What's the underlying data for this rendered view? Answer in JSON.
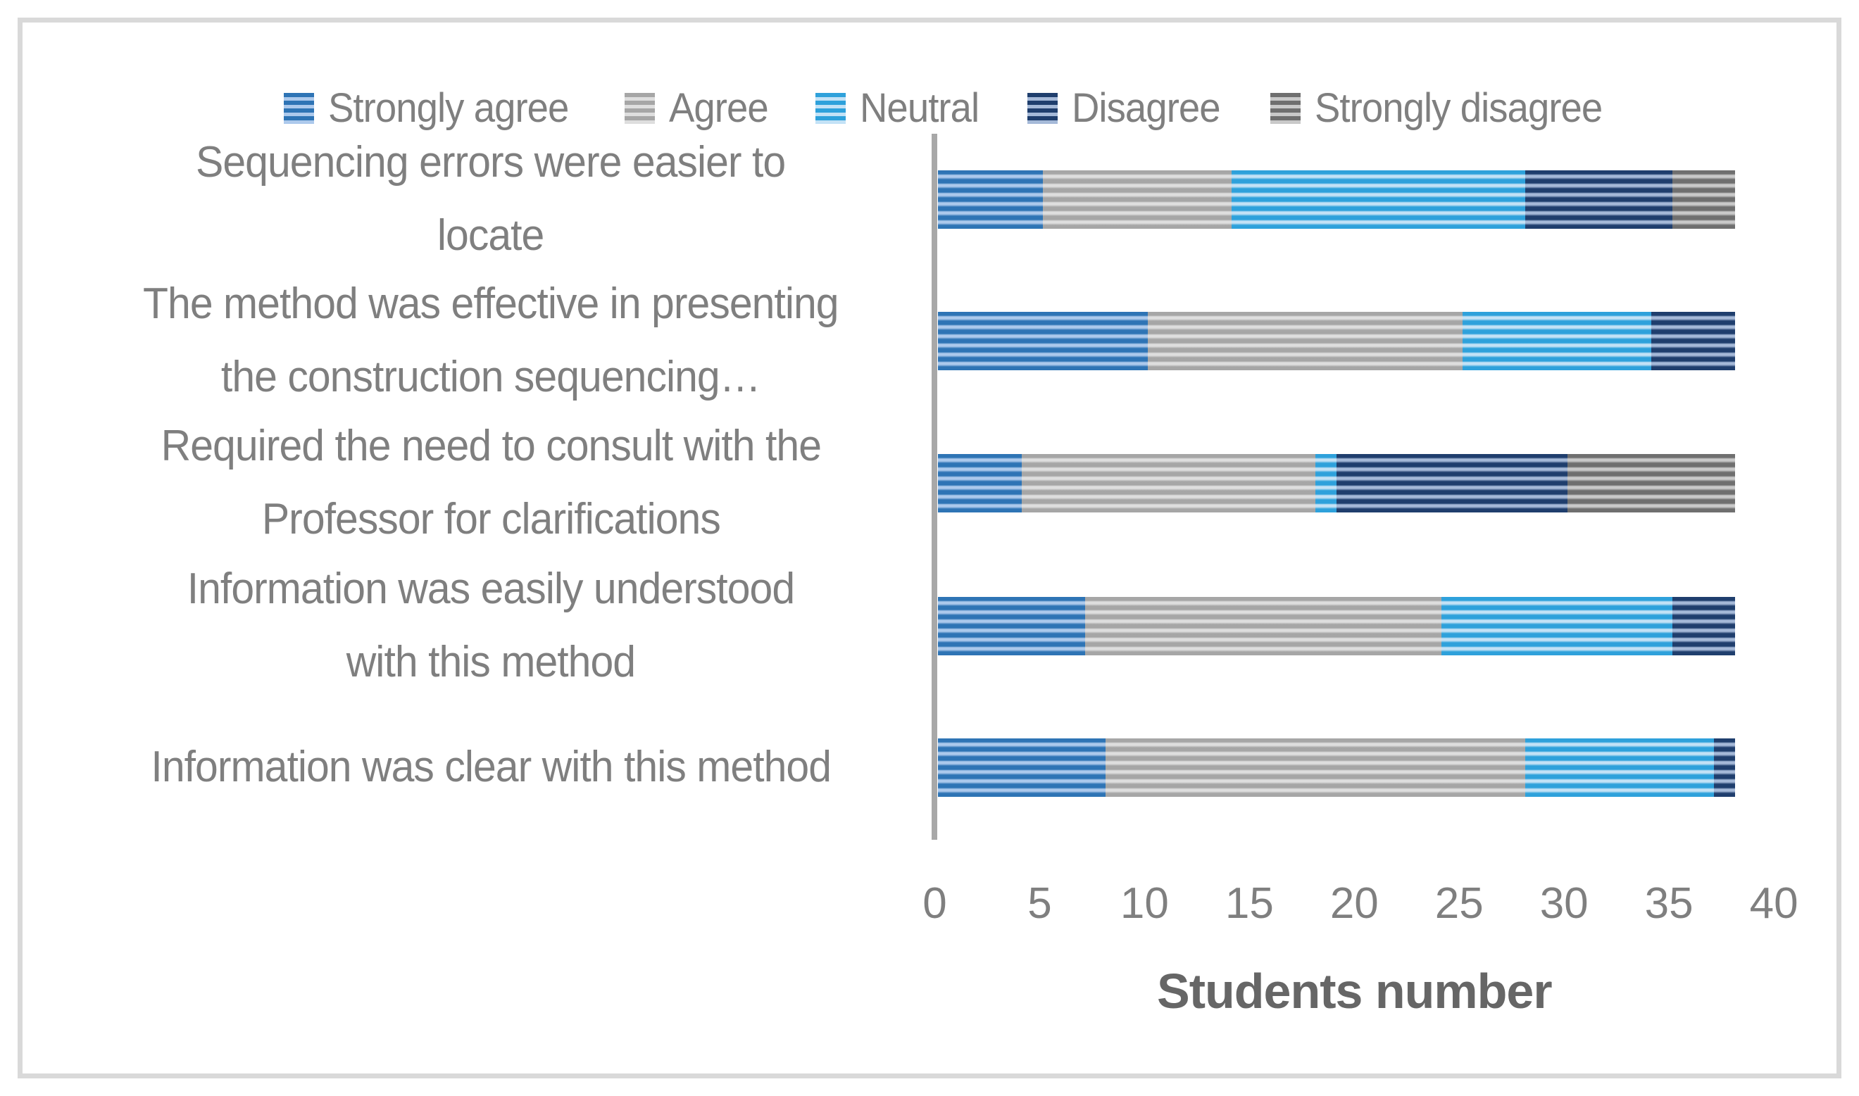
{
  "chart_data": {
    "type": "bar",
    "orientation": "horizontal",
    "stacked": true,
    "grid": false,
    "legend_position": "top",
    "xlabel": "Students number",
    "xlim": [
      0,
      40
    ],
    "xticks": [
      0,
      5,
      10,
      15,
      20,
      25,
      30,
      35,
      40
    ],
    "categories": [
      "Sequencing errors were easier to locate",
      "The method was effective in presenting the construction sequencing…",
      "Required the need to consult with the Professor for clarifications",
      "Information was easily understood with this method",
      "Information was clear with this method"
    ],
    "category_lines": [
      [
        "Sequencing errors were easier to",
        "locate"
      ],
      [
        "The method was effective in presenting",
        "the construction sequencing…"
      ],
      [
        "Required the need to consult with the",
        "Professor for clarifications"
      ],
      [
        "Information was easily understood",
        "with this method"
      ],
      [
        "Information was clear with this method"
      ]
    ],
    "series": [
      {
        "name": "Strongly agree",
        "values": [
          5,
          10,
          4,
          7,
          8
        ],
        "color": "#2E74B5",
        "stripe_light": "#ACC9EC"
      },
      {
        "name": "Agree",
        "values": [
          9,
          15,
          14,
          17,
          20
        ],
        "color": "#A6A6A6",
        "stripe_light": "#DEDEDE"
      },
      {
        "name": "Neutral",
        "values": [
          14,
          9,
          1,
          11,
          9
        ],
        "color": "#2EA1DB",
        "stripe_light": "#C3E2F6"
      },
      {
        "name": "Disagree",
        "values": [
          7,
          4,
          11,
          3,
          1
        ],
        "color": "#1F3E6D",
        "stripe_light": "#A5B9D8"
      },
      {
        "name": "Strongly disagree",
        "values": [
          3,
          0,
          8,
          0,
          0
        ],
        "color": "#6F6F6F",
        "stripe_light": "#C9C9C9"
      }
    ],
    "colors": {
      "text": "#7F7F7F",
      "axis_line": "#A8A8A8",
      "frame_border": "#D9D9D9",
      "axis_title": "#666666",
      "background": "#FFFFFF"
    }
  }
}
